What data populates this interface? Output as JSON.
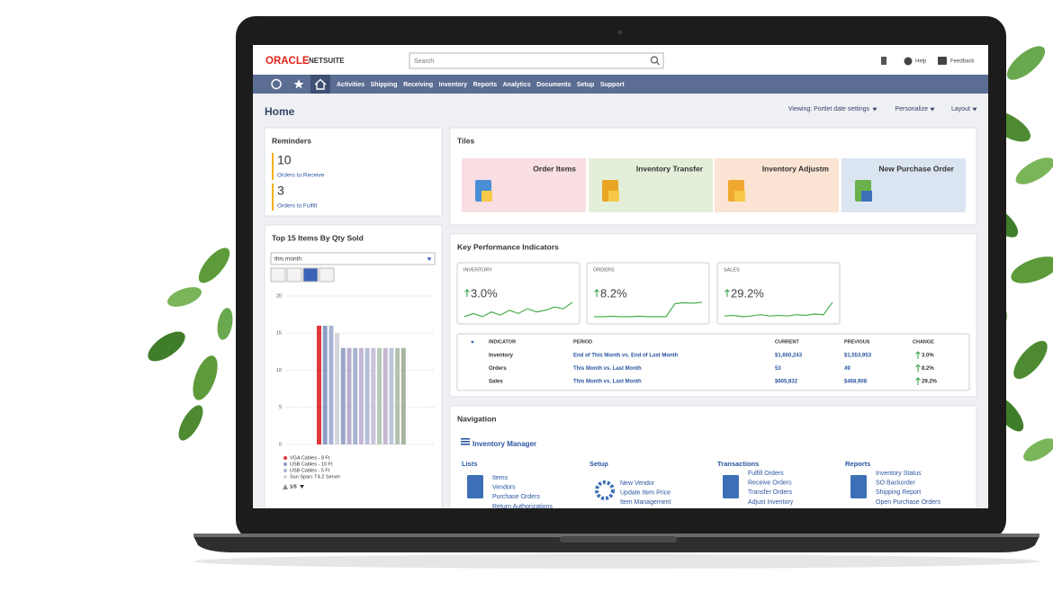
{
  "header": {
    "logo_oracle": "ORACLE",
    "logo_netsuite": "NETSUITE",
    "search_placeholder": "Search",
    "help": "Help",
    "feedback": "Feedback"
  },
  "nav": [
    "Activities",
    "Shipping",
    "Receiving",
    "Inventory",
    "Reports",
    "Analytics",
    "Documents",
    "Setup",
    "Support"
  ],
  "page": {
    "title": "Home",
    "viewing": "Viewing: Portlet date settings",
    "personalize": "Personalize",
    "layout": "Layout"
  },
  "reminders": {
    "title": "Reminders",
    "items": [
      {
        "count": 10,
        "label": "Orders to Receive"
      },
      {
        "count": 3,
        "label": "Orders to Fulfill"
      }
    ]
  },
  "top_items": {
    "title": "Top 15 Items By Qty Sold",
    "period": "this month",
    "pager": "1/5",
    "chart": {
      "type": "bar",
      "categories": [
        "VGA Cables - 8 Ft",
        "USB Cables - 10 Ft",
        "USB Cables - 5 Ft",
        "Sun Sparc T4-2 Server",
        null,
        null,
        null,
        null,
        null,
        null,
        null,
        null,
        null,
        null,
        null
      ],
      "values": [
        16,
        16,
        16,
        15,
        13,
        13,
        13,
        13,
        13,
        13,
        13,
        13,
        13,
        13,
        13
      ],
      "colors": [
        "#e2383d",
        "#8d9cc4",
        "#a9b3d3",
        "#d4d6de",
        "#9aa6c6",
        "#b8aed0",
        "#a7b3cf",
        "#c3b9d6",
        "#b5bfd6",
        "#c9c4dc",
        "#b7c9b8",
        "#c4b8cf",
        "#bfc6d9",
        "#b3c2ae",
        "#a7b59f"
      ],
      "ylim": [
        0,
        20
      ],
      "yticks": [
        0,
        5,
        10,
        15,
        20
      ],
      "grid": true
    }
  },
  "tiles": {
    "title": "Tiles",
    "items": [
      {
        "label": "Order Items",
        "color": "#f9dfe3"
      },
      {
        "label": "Inventory Transfer",
        "color": "#e4efda"
      },
      {
        "label": "Inventory Adjustm",
        "color": "#fbe4d3"
      },
      {
        "label": "New Purchase Order",
        "color": "#dbe5f1"
      }
    ]
  },
  "kpi": {
    "title": "Key Performance Indicators",
    "cards": [
      {
        "label": "INVENTORY",
        "change": "3.0%",
        "trend": [
          3.0,
          3.2,
          3.0,
          3.3,
          3.1,
          3.4,
          3.2,
          3.5,
          3.3,
          3.4,
          3.6,
          3.5,
          3.9
        ]
      },
      {
        "label": "ORDERS",
        "change": "8.2%",
        "trend": [
          2.0,
          2.0,
          2.1,
          2.0,
          2.0,
          2.1,
          2.0,
          2.0,
          2.0,
          5.0,
          5.2,
          5.1,
          5.3
        ]
      },
      {
        "label": "SALES",
        "change": "29.2%",
        "trend": [
          3.0,
          3.1,
          2.9,
          3.0,
          3.2,
          3.0,
          3.1,
          3.0,
          3.2,
          3.1,
          3.3,
          3.2,
          5.0
        ]
      }
    ],
    "table": {
      "columns": [
        "INDICATOR",
        "PERIOD",
        "CURRENT",
        "PREVIOUS",
        "CHANGE"
      ],
      "rows": [
        [
          "Inventory",
          "End of This Month vs. End of Last Month",
          "$1,600,243",
          "$1,553,953",
          "3.0%"
        ],
        [
          "Orders",
          "This Month vs. Last Month",
          "53",
          "49",
          "8.2%"
        ],
        [
          "Sales",
          "This Month vs. Last Month",
          "$605,832",
          "$468,908",
          "29.2%"
        ]
      ]
    }
  },
  "navigation": {
    "title": "Navigation",
    "center": "Inventory Manager",
    "groups": [
      {
        "title": "Lists",
        "links": [
          "Items",
          "Vendors",
          "Purchase Orders",
          "Return Authorizations"
        ]
      },
      {
        "title": "Setup",
        "links": [
          "New Vendor",
          "Update Item Price",
          "Item Management"
        ]
      },
      {
        "title": "Transactions",
        "links": [
          "Fulfill Orders",
          "Receive Orders",
          "Transfer Orders",
          "Adjust Inventory"
        ]
      },
      {
        "title": "Reports",
        "links": [
          "Inventory Status",
          "SO Backorder",
          "Shipping Report",
          "Open Purchase Orders"
        ]
      }
    ]
  }
}
